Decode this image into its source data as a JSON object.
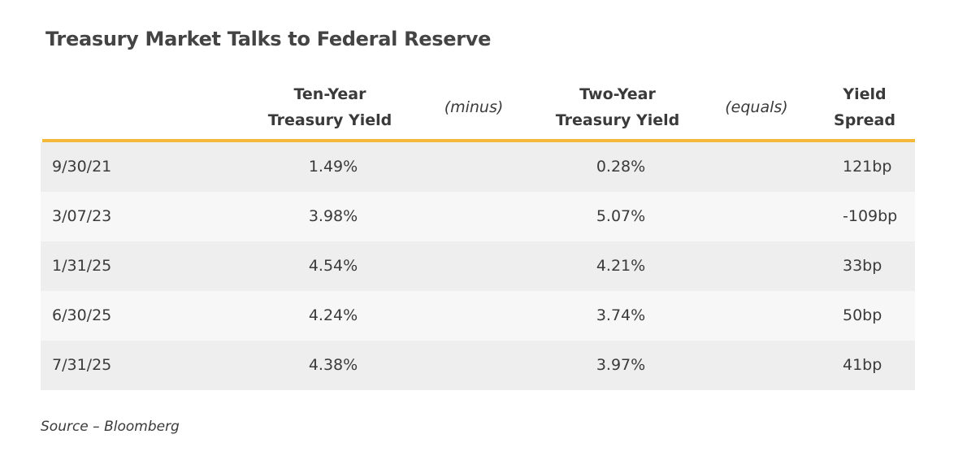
{
  "chart_data": {
    "type": "table",
    "title": "Treasury Market Talks to Federal Reserve",
    "columns": [
      {
        "key": "date",
        "label": ""
      },
      {
        "key": "ten_year",
        "label_lines": [
          "Ten-Year",
          "Treasury Yield"
        ]
      },
      {
        "key": "minus_op",
        "label": "(minus)"
      },
      {
        "key": "two_year",
        "label_lines": [
          "Two-Year",
          "Treasury Yield"
        ]
      },
      {
        "key": "equals_op",
        "label": "(equals)"
      },
      {
        "key": "spread",
        "label_lines": [
          "Yield",
          "Spread"
        ]
      }
    ],
    "rows": [
      {
        "date": "9/30/21",
        "ten_year": "1.49%",
        "two_year": "0.28%",
        "spread": "121bp"
      },
      {
        "date": "3/07/23",
        "ten_year": "3.98%",
        "two_year": "5.07%",
        "spread": "-109bp"
      },
      {
        "date": "1/31/25",
        "ten_year": "4.54%",
        "two_year": "4.21%",
        "spread": "33bp"
      },
      {
        "date": "6/30/25",
        "ten_year": "4.24%",
        "two_year": "3.74%",
        "spread": "50bp"
      },
      {
        "date": "7/31/25",
        "ten_year": "4.38%",
        "two_year": "3.97%",
        "spread": "41bp"
      }
    ],
    "source": "Source – Bloomberg",
    "accent_color": "#f5b93a",
    "row_colors": [
      "#eeeeef",
      "#f7f7f8"
    ]
  }
}
